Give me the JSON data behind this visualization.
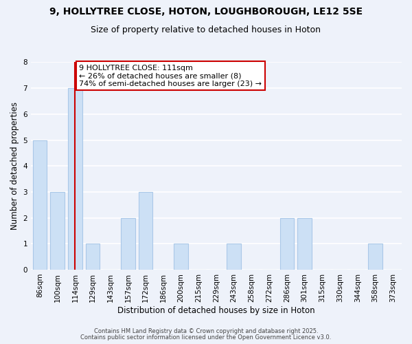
{
  "title1": "9, HOLLYTREE CLOSE, HOTON, LOUGHBOROUGH, LE12 5SE",
  "title2": "Size of property relative to detached houses in Hoton",
  "xlabel": "Distribution of detached houses by size in Hoton",
  "ylabel": "Number of detached properties",
  "categories": [
    "86sqm",
    "100sqm",
    "114sqm",
    "129sqm",
    "143sqm",
    "157sqm",
    "172sqm",
    "186sqm",
    "200sqm",
    "215sqm",
    "229sqm",
    "243sqm",
    "258sqm",
    "272sqm",
    "286sqm",
    "301sqm",
    "315sqm",
    "330sqm",
    "344sqm",
    "358sqm",
    "373sqm"
  ],
  "values": [
    5,
    3,
    7,
    1,
    0,
    2,
    3,
    0,
    1,
    0,
    0,
    1,
    0,
    0,
    2,
    2,
    0,
    0,
    0,
    1,
    0
  ],
  "vline_x": 2,
  "vline_color": "#cc0000",
  "bar_color": "#cce0f5",
  "bar_edge_color": "#aac8e8",
  "ylim": [
    0,
    8
  ],
  "yticks": [
    0,
    1,
    2,
    3,
    4,
    5,
    6,
    7,
    8
  ],
  "annotation_title": "9 HOLLYTREE CLOSE: 111sqm",
  "annotation_line1": "← 26% of detached houses are smaller (8)",
  "annotation_line2": "74% of semi-detached houses are larger (23) →",
  "footer1": "Contains HM Land Registry data © Crown copyright and database right 2025.",
  "footer2": "Contains public sector information licensed under the Open Government Licence v3.0.",
  "background_color": "#eef2fa",
  "plot_background": "#eef2fa",
  "grid_color": "#ffffff",
  "title_fontsize": 10,
  "subtitle_fontsize": 9,
  "axis_label_fontsize": 8.5,
  "tick_fontsize": 7.5,
  "annotation_fontsize": 8,
  "footer_fontsize": 6
}
